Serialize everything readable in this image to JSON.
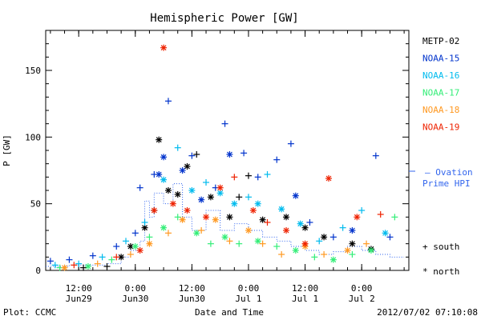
{
  "chart_data": {
    "type": "scatter",
    "title": "Hemispheric Power [GW]",
    "xlabel": "Date and Time",
    "ylabel": "P [GW]",
    "ylim": [
      0,
      180
    ],
    "xlim": [
      "2012-06-29 05:00",
      "2012-07-02 10:00"
    ],
    "y_ticks": [
      0,
      50,
      100,
      150
    ],
    "x_ticks": [
      {
        "t": "2012-06-29 12:00",
        "label1": "12:00",
        "label2": "Jun29"
      },
      {
        "t": "2012-06-30 00:00",
        "label1": "0:00",
        "label2": "Jun30"
      },
      {
        "t": "2012-06-30 12:00",
        "label1": "12:00",
        "label2": "Jun30"
      },
      {
        "t": "2012-07-01 00:00",
        "label1": "0:00",
        "label2": "Jul 1"
      },
      {
        "t": "2012-07-01 12:00",
        "label1": "12:00",
        "label2": "Jul 1"
      },
      {
        "t": "2012-07-02 00:00",
        "label1": "0:00",
        "label2": "Jul 2"
      }
    ],
    "grid": false,
    "legend_placement": "right",
    "series": [
      {
        "name": "METP-02",
        "color": "#000000",
        "points": [
          [
            "2012-06-29 13:00",
            2,
            "+"
          ],
          [
            "2012-06-29 18:00",
            3,
            "+"
          ],
          [
            "2012-06-29 21:00",
            10,
            "*"
          ],
          [
            "2012-06-29 23:00",
            18,
            "*"
          ],
          [
            "2012-06-30 02:00",
            32,
            "*"
          ],
          [
            "2012-06-30 04:00",
            45,
            "+"
          ],
          [
            "2012-06-30 05:00",
            98,
            "*"
          ],
          [
            "2012-06-30 07:00",
            60,
            "*"
          ],
          [
            "2012-06-30 09:00",
            57,
            "*"
          ],
          [
            "2012-06-30 11:00",
            78,
            "*"
          ],
          [
            "2012-06-30 13:00",
            87,
            "+"
          ],
          [
            "2012-06-30 16:00",
            55,
            "*"
          ],
          [
            "2012-06-30 20:00",
            40,
            "*"
          ],
          [
            "2012-06-30 22:00",
            55,
            "+"
          ],
          [
            "2012-07-01 00:00",
            71,
            "+"
          ],
          [
            "2012-07-01 03:00",
            38,
            "*"
          ],
          [
            "2012-07-01 08:00",
            40,
            "*"
          ],
          [
            "2012-07-01 12:00",
            32,
            "*"
          ],
          [
            "2012-07-01 16:00",
            25,
            "*"
          ],
          [
            "2012-07-01 22:00",
            20,
            "*"
          ],
          [
            "2012-07-02 02:00",
            16,
            "*"
          ]
        ]
      },
      {
        "name": "NOAA-15",
        "color": "#0033cc",
        "points": [
          [
            "2012-06-29 06:00",
            7,
            "+"
          ],
          [
            "2012-06-29 10:00",
            8,
            "+"
          ],
          [
            "2012-06-29 15:00",
            11,
            "+"
          ],
          [
            "2012-06-29 20:00",
            18,
            "+"
          ],
          [
            "2012-06-30 00:00",
            28,
            "+"
          ],
          [
            "2012-06-30 01:00",
            62,
            "+"
          ],
          [
            "2012-06-30 04:00",
            72,
            "+"
          ],
          [
            "2012-06-30 05:00",
            72,
            "*"
          ],
          [
            "2012-06-30 06:00",
            85,
            "*"
          ],
          [
            "2012-06-30 07:00",
            127,
            "+"
          ],
          [
            "2012-06-30 10:00",
            75,
            "*"
          ],
          [
            "2012-06-30 12:00",
            86,
            "+"
          ],
          [
            "2012-06-30 14:00",
            53,
            "*"
          ],
          [
            "2012-06-30 17:00",
            62,
            "+"
          ],
          [
            "2012-06-30 19:00",
            110,
            "+"
          ],
          [
            "2012-06-30 20:00",
            87,
            "*"
          ],
          [
            "2012-06-30 23:00",
            88,
            "+"
          ],
          [
            "2012-07-01 02:00",
            70,
            "+"
          ],
          [
            "2012-07-01 06:00",
            83,
            "+"
          ],
          [
            "2012-07-01 09:00",
            95,
            "+"
          ],
          [
            "2012-07-01 10:00",
            56,
            "*"
          ],
          [
            "2012-07-01 13:00",
            36,
            "+"
          ],
          [
            "2012-07-01 18:00",
            25,
            "+"
          ],
          [
            "2012-07-01 22:00",
            30,
            "*"
          ],
          [
            "2012-07-02 03:00",
            86,
            "+"
          ],
          [
            "2012-07-02 06:00",
            25,
            "+"
          ]
        ]
      },
      {
        "name": "NOAA-16",
        "color": "#00bbee",
        "points": [
          [
            "2012-06-29 07:00",
            4,
            "+"
          ],
          [
            "2012-06-29 12:00",
            5,
            "+"
          ],
          [
            "2012-06-29 17:00",
            10,
            "+"
          ],
          [
            "2012-06-29 22:00",
            22,
            "+"
          ],
          [
            "2012-06-30 02:00",
            36,
            "+"
          ],
          [
            "2012-06-30 06:00",
            68,
            "*"
          ],
          [
            "2012-06-30 09:00",
            92,
            "+"
          ],
          [
            "2012-06-30 12:00",
            60,
            "*"
          ],
          [
            "2012-06-30 15:00",
            66,
            "+"
          ],
          [
            "2012-06-30 18:00",
            58,
            "*"
          ],
          [
            "2012-06-30 21:00",
            50,
            "*"
          ],
          [
            "2012-07-01 00:00",
            55,
            "+"
          ],
          [
            "2012-07-01 02:00",
            50,
            "*"
          ],
          [
            "2012-07-01 04:00",
            72,
            "+"
          ],
          [
            "2012-07-01 07:00",
            46,
            "*"
          ],
          [
            "2012-07-01 11:00",
            35,
            "*"
          ],
          [
            "2012-07-01 15:00",
            22,
            "+"
          ],
          [
            "2012-07-01 20:00",
            32,
            "+"
          ],
          [
            "2012-07-02 00:00",
            45,
            "+"
          ],
          [
            "2012-07-02 05:00",
            28,
            "*"
          ]
        ]
      },
      {
        "name": "NOAA-17",
        "color": "#33ee77",
        "points": [
          [
            "2012-06-29 08:00",
            2,
            "+"
          ],
          [
            "2012-06-29 14:00",
            3,
            "*"
          ],
          [
            "2012-06-29 19:00",
            8,
            "+"
          ],
          [
            "2012-06-30 00:00",
            18,
            "*"
          ],
          [
            "2012-06-30 03:00",
            25,
            "+"
          ],
          [
            "2012-06-30 06:00",
            32,
            "*"
          ],
          [
            "2012-06-30 09:00",
            40,
            "+"
          ],
          [
            "2012-06-30 13:00",
            28,
            "*"
          ],
          [
            "2012-06-30 16:00",
            20,
            "+"
          ],
          [
            "2012-06-30 19:00",
            25,
            "*"
          ],
          [
            "2012-06-30 22:00",
            20,
            "+"
          ],
          [
            "2012-07-01 02:00",
            22,
            "*"
          ],
          [
            "2012-07-01 06:00",
            18,
            "+"
          ],
          [
            "2012-07-01 10:00",
            15,
            "*"
          ],
          [
            "2012-07-01 14:00",
            10,
            "+"
          ],
          [
            "2012-07-01 18:00",
            8,
            "*"
          ],
          [
            "2012-07-01 22:00",
            12,
            "+"
          ],
          [
            "2012-07-02 02:00",
            15,
            "*"
          ],
          [
            "2012-07-02 07:00",
            40,
            "+"
          ]
        ]
      },
      {
        "name": "NOAA-18",
        "color": "#ff9922",
        "points": [
          [
            "2012-06-29 09:00",
            2,
            "*"
          ],
          [
            "2012-06-29 16:00",
            5,
            "+"
          ],
          [
            "2012-06-29 23:00",
            12,
            "+"
          ],
          [
            "2012-06-30 03:00",
            20,
            "*"
          ],
          [
            "2012-06-30 07:00",
            28,
            "+"
          ],
          [
            "2012-06-30 10:00",
            38,
            "*"
          ],
          [
            "2012-06-30 14:00",
            30,
            "+"
          ],
          [
            "2012-06-30 17:00",
            38,
            "*"
          ],
          [
            "2012-06-30 20:00",
            22,
            "+"
          ],
          [
            "2012-07-01 00:00",
            30,
            "*"
          ],
          [
            "2012-07-01 03:00",
            20,
            "+"
          ],
          [
            "2012-07-01 07:00",
            12,
            "+"
          ],
          [
            "2012-07-01 12:00",
            18,
            "*"
          ],
          [
            "2012-07-01 16:00",
            12,
            "+"
          ],
          [
            "2012-07-01 21:00",
            15,
            "*"
          ],
          [
            "2012-07-02 01:00",
            20,
            "+"
          ]
        ]
      },
      {
        "name": "NOAA-19",
        "color": "#ee2200",
        "points": [
          [
            "2012-06-29 11:00",
            4,
            "+"
          ],
          [
            "2012-06-29 20:00",
            10,
            "+"
          ],
          [
            "2012-06-30 01:00",
            15,
            "*"
          ],
          [
            "2012-06-30 04:00",
            45,
            "*"
          ],
          [
            "2012-06-30 06:00",
            167,
            "*"
          ],
          [
            "2012-06-30 08:00",
            50,
            "*"
          ],
          [
            "2012-06-30 11:00",
            45,
            "*"
          ],
          [
            "2012-06-30 15:00",
            40,
            "*"
          ],
          [
            "2012-06-30 18:00",
            62,
            "*"
          ],
          [
            "2012-06-30 21:00",
            70,
            "+"
          ],
          [
            "2012-07-01 01:00",
            45,
            "*"
          ],
          [
            "2012-07-01 04:00",
            36,
            "+"
          ],
          [
            "2012-07-01 08:00",
            30,
            "*"
          ],
          [
            "2012-07-01 12:00",
            20,
            "*"
          ],
          [
            "2012-07-01 17:00",
            69,
            "*"
          ],
          [
            "2012-07-01 23:00",
            40,
            "*"
          ],
          [
            "2012-07-02 04:00",
            42,
            "+"
          ]
        ]
      }
    ],
    "ovation": {
      "label_line1": "— Ovation",
      "label_line2": "Prime HPI",
      "color": "#3366ee",
      "points": [
        [
          "2012-06-29 05:00",
          3
        ],
        [
          "2012-06-29 10:00",
          4
        ],
        [
          "2012-06-29 14:00",
          4
        ],
        [
          "2012-06-29 18:00",
          5
        ],
        [
          "2012-06-29 21:00",
          10
        ],
        [
          "2012-06-29 23:00",
          15
        ],
        [
          "2012-06-30 01:00",
          22
        ],
        [
          "2012-06-30 02:00",
          52
        ],
        [
          "2012-06-30 03:00",
          40
        ],
        [
          "2012-06-30 04:00",
          58
        ],
        [
          "2012-06-30 06:00",
          50
        ],
        [
          "2012-06-30 08:00",
          65
        ],
        [
          "2012-06-30 10:00",
          40
        ],
        [
          "2012-06-30 12:00",
          30
        ],
        [
          "2012-06-30 15:00",
          45
        ],
        [
          "2012-06-30 18:00",
          30
        ],
        [
          "2012-06-30 21:00",
          35
        ],
        [
          "2012-07-01 00:00",
          30
        ],
        [
          "2012-07-01 03:00",
          25
        ],
        [
          "2012-07-01 06:00",
          22
        ],
        [
          "2012-07-01 09:00",
          18
        ],
        [
          "2012-07-01 12:00",
          15
        ],
        [
          "2012-07-01 15:00",
          12
        ],
        [
          "2012-07-01 18:00",
          14
        ],
        [
          "2012-07-01 21:00",
          18
        ],
        [
          "2012-07-02 00:00",
          15
        ],
        [
          "2012-07-02 03:00",
          12
        ],
        [
          "2012-07-02 06:00",
          10
        ],
        [
          "2012-07-02 09:00",
          10
        ]
      ]
    },
    "hemisphere_legend": {
      "south": "+ south",
      "north": "* north"
    }
  },
  "footer": {
    "left": "Plot: CCMC",
    "center": "Date and Time",
    "right": "2012/07/02 07:10:08"
  }
}
